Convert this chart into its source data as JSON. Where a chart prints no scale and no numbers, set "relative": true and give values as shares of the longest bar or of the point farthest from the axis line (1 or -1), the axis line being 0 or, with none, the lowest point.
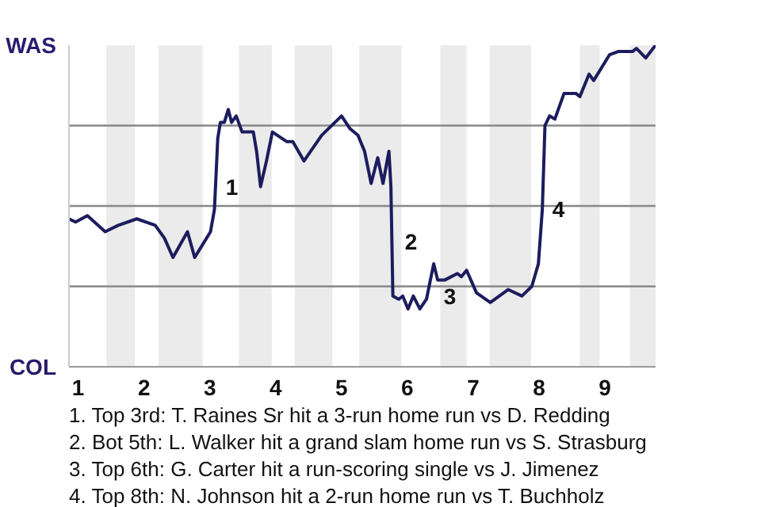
{
  "chart_data": {
    "type": "line",
    "relative": true,
    "x": [
      0.86,
      0.96,
      1.14,
      1.41,
      1.61,
      1.89,
      2.17,
      2.31,
      2.44,
      2.66,
      2.77,
      3.01,
      3.07,
      3.12,
      3.16,
      3.22,
      3.28,
      3.33,
      3.4,
      3.49,
      3.66,
      3.71,
      3.77,
      3.86,
      3.95,
      4.17,
      4.26,
      4.43,
      4.7,
      5,
      5.13,
      5.25,
      5.35,
      5.45,
      5.55,
      5.63,
      5.72,
      5.75,
      5.78,
      5.87,
      5.93,
      6.01,
      6.09,
      6.19,
      6.29,
      6.4,
      6.46,
      6.57,
      6.76,
      6.82,
      6.9,
      7.05,
      7.26,
      7.53,
      7.74,
      7.89,
      7.99,
      8.05,
      8.09,
      8.16,
      8.24,
      8.38,
      8.48,
      8.56,
      8.62,
      8.76,
      8.83,
      9.07,
      9.2,
      9.42,
      9.48,
      9.62,
      9.77
    ],
    "series": [
      {
        "color": "#1c1c5e",
        "values": [
          0.46,
          0.45,
          0.47,
          0.42,
          0.44,
          0.46,
          0.44,
          0.4,
          0.34,
          0.42,
          0.34,
          0.42,
          0.49,
          0.71,
          0.76,
          0.76,
          0.8,
          0.76,
          0.78,
          0.73,
          0.73,
          0.67,
          0.56,
          0.64,
          0.73,
          0.7,
          0.7,
          0.64,
          0.72,
          0.78,
          0.74,
          0.72,
          0.67,
          0.57,
          0.65,
          0.57,
          0.67,
          0.56,
          0.22,
          0.21,
          0.22,
          0.18,
          0.22,
          0.18,
          0.21,
          0.32,
          0.27,
          0.27,
          0.29,
          0.28,
          0.3,
          0.23,
          0.2,
          0.24,
          0.22,
          0.25,
          0.32,
          0.49,
          0.75,
          0.78,
          0.77,
          0.85,
          0.85,
          0.85,
          0.84,
          0.91,
          0.89,
          0.97,
          0.98,
          0.98,
          0.99,
          0.96,
          1.0
        ]
      }
    ],
    "xlim": [
      0.86,
      9.77
    ],
    "xticks": [
      1,
      2,
      3,
      4,
      5,
      6,
      7,
      8,
      9
    ],
    "marker": "none",
    "line_style": "solid",
    "ref_lines": [
      {
        "axis": "y",
        "value": 0.25,
        "color": "#888888"
      },
      {
        "axis": "y",
        "value": 0.5,
        "color": "#888888"
      },
      {
        "axis": "y",
        "value": 0.75,
        "color": "#888888"
      }
    ],
    "bands": [
      {
        "axis": "x",
        "from": 1.43,
        "to": 1.86,
        "color": "#ebebeb"
      },
      {
        "axis": "x",
        "from": 2.22,
        "to": 2.89,
        "color": "#ebebeb"
      },
      {
        "axis": "x",
        "from": 3.44,
        "to": 3.94,
        "color": "#ebebeb"
      },
      {
        "axis": "x",
        "from": 4.29,
        "to": 4.86,
        "color": "#ebebeb"
      },
      {
        "axis": "x",
        "from": 5.27,
        "to": 5.91,
        "color": "#ebebeb"
      },
      {
        "axis": "x",
        "from": 6.5,
        "to": 6.9,
        "color": "#ebebeb"
      },
      {
        "axis": "x",
        "from": 7.25,
        "to": 7.88,
        "color": "#ebebeb"
      },
      {
        "axis": "x",
        "from": 8.62,
        "to": 8.92,
        "color": "#ebebeb"
      },
      {
        "axis": "x",
        "from": 9.38,
        "to": 9.77,
        "color": "#ebebeb"
      }
    ],
    "annotations": [
      "WAS",
      "COL",
      {
        "text": "1",
        "x": 3.17,
        "y": 0.57
      },
      {
        "text": "2",
        "x": 5.89,
        "y": 0.4
      },
      {
        "text": "3",
        "x": 6.48,
        "y": 0.23
      },
      {
        "text": "4",
        "x": 8.13,
        "y": 0.5
      },
      "1. Top 3rd: T. Raines Sr hit a 3-run home run vs D. Redding",
      "2. Bot 5th: L. Walker hit a grand slam home run vs S. Strasburg",
      "3. Top 6th: G. Carter hit a run-scoring single vs J. Jimenez",
      "4. Top 8th: N. Johnson hit a 2-run home run vs T. Buchholz"
    ]
  }
}
